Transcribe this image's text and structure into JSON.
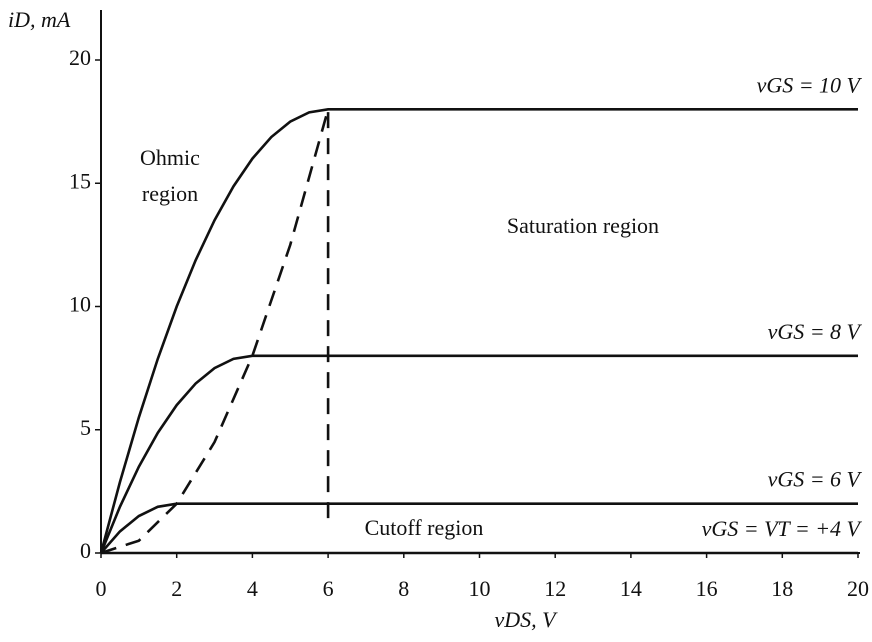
{
  "chart_data": {
    "type": "line",
    "axis_labels": {
      "y": "iD, mA",
      "x": "vDS, V"
    },
    "x": [
      0,
      0.5,
      1,
      1.5,
      2,
      2.5,
      3,
      3.5,
      4,
      4.5,
      5,
      5.5,
      6,
      8,
      10,
      12,
      14,
      16,
      18,
      20
    ],
    "series": [
      {
        "name": "vGS = 10 V",
        "color": "#111111",
        "values": [
          0,
          2.875,
          5.5,
          7.875,
          10,
          11.875,
          13.5,
          14.875,
          16,
          16.875,
          17.5,
          17.875,
          18,
          18,
          18,
          18,
          18,
          18,
          18,
          18
        ]
      },
      {
        "name": "vGS = 8 V",
        "color": "#111111",
        "values": [
          0,
          1.875,
          3.5,
          4.875,
          6,
          6.875,
          7.5,
          7.875,
          8,
          8,
          8,
          8,
          8,
          8,
          8,
          8,
          8,
          8,
          8,
          8
        ]
      },
      {
        "name": "vGS = 6 V",
        "color": "#111111",
        "values": [
          0,
          0.875,
          1.5,
          1.875,
          2,
          2,
          2,
          2,
          2,
          2,
          2,
          2,
          2,
          2,
          2,
          2,
          2,
          2,
          2,
          2
        ]
      },
      {
        "name": "vGS = VT = +4 V",
        "color": "#111111",
        "values": [
          0,
          0,
          0,
          0,
          0,
          0,
          0,
          0,
          0,
          0,
          0,
          0,
          0,
          0,
          0,
          0,
          0,
          0,
          0,
          0
        ]
      },
      {
        "color": "#111111",
        "dashed": true,
        "x": [
          0,
          1,
          2,
          3,
          4,
          5,
          6,
          6
        ],
        "values": [
          0,
          0.5,
          2,
          4.5,
          8,
          12.5,
          18,
          1.3
        ]
      }
    ],
    "annotations": [
      [
        "Ohmic",
        "region"
      ],
      [
        "Saturation region"
      ],
      [
        "Cutoff region"
      ]
    ],
    "xlim": [
      0,
      20
    ],
    "xticks": [
      0,
      2,
      4,
      6,
      8,
      10,
      12,
      14,
      16,
      18,
      20
    ],
    "ylim": [
      0,
      20
    ],
    "yticks": [
      0,
      5,
      10,
      15,
      20
    ],
    "grid": false
  }
}
